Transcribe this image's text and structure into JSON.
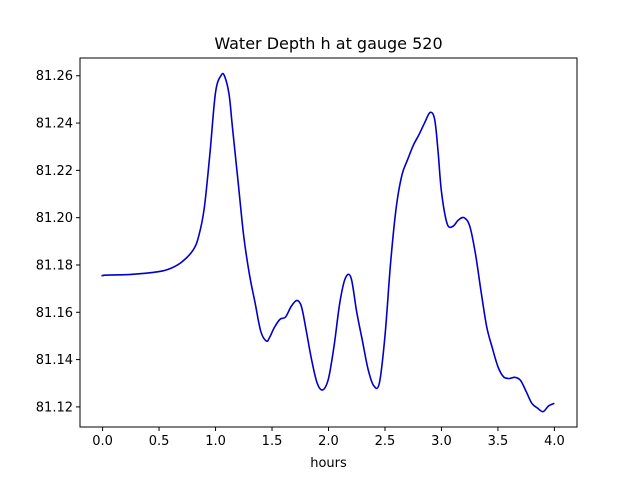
{
  "chart_data": {
    "type": "line",
    "title": "Water Depth h at gauge 520",
    "xlabel": "hours",
    "ylabel": "",
    "xlim": [
      -0.2,
      4.2
    ],
    "ylim": [
      81.1115,
      81.2675
    ],
    "grid": false,
    "x_ticks": [
      0.0,
      0.5,
      1.0,
      1.5,
      2.0,
      2.5,
      3.0,
      3.5,
      4.0
    ],
    "x_tick_labels": [
      "0.0",
      "0.5",
      "1.0",
      "1.5",
      "2.0",
      "2.5",
      "3.0",
      "3.5",
      "4.0"
    ],
    "y_ticks": [
      81.12,
      81.14,
      81.16,
      81.18,
      81.2,
      81.22,
      81.24,
      81.26
    ],
    "y_tick_labels": [
      "81.12",
      "81.14",
      "81.16",
      "81.18",
      "81.20",
      "81.22",
      "81.24",
      "81.26"
    ],
    "series": [
      {
        "color": "#0000cc",
        "x": [
          0.0,
          0.02,
          0.25,
          0.5,
          0.6,
          0.7,
          0.8,
          0.85,
          0.9,
          0.95,
          1.0,
          1.05,
          1.08,
          1.12,
          1.15,
          1.2,
          1.25,
          1.3,
          1.35,
          1.4,
          1.45,
          1.48,
          1.52,
          1.57,
          1.62,
          1.67,
          1.72,
          1.76,
          1.8,
          1.85,
          1.9,
          1.95,
          2.0,
          2.05,
          2.1,
          2.15,
          2.2,
          2.25,
          2.3,
          2.35,
          2.4,
          2.45,
          2.5,
          2.55,
          2.6,
          2.65,
          2.7,
          2.75,
          2.8,
          2.85,
          2.9,
          2.94,
          2.97,
          3.0,
          3.05,
          3.1,
          3.15,
          3.2,
          3.25,
          3.3,
          3.35,
          3.4,
          3.45,
          3.5,
          3.55,
          3.6,
          3.65,
          3.7,
          3.75,
          3.8,
          3.85,
          3.9,
          3.95,
          4.0
        ],
        "y": [
          81.1752,
          81.1757,
          81.176,
          81.1772,
          81.1785,
          81.1812,
          81.1862,
          81.192,
          81.204,
          81.227,
          81.253,
          81.2602,
          81.2598,
          81.252,
          81.238,
          81.215,
          81.192,
          81.176,
          81.164,
          81.152,
          81.1478,
          81.1495,
          81.1535,
          81.157,
          81.158,
          81.1625,
          81.165,
          81.1625,
          81.153,
          81.14,
          81.13,
          81.1272,
          81.132,
          81.146,
          81.164,
          81.1745,
          81.1745,
          81.16,
          81.148,
          81.136,
          81.129,
          81.13,
          81.15,
          81.181,
          81.2045,
          81.218,
          81.2245,
          81.2305,
          81.235,
          81.24,
          81.2445,
          81.2415,
          81.228,
          81.211,
          81.1975,
          81.1963,
          81.199,
          81.2,
          81.1965,
          81.185,
          81.169,
          81.154,
          81.145,
          81.137,
          81.1327,
          81.132,
          81.1325,
          81.1312,
          81.1265,
          81.1215,
          81.1195,
          81.118,
          81.1205,
          81.1215
        ]
      }
    ]
  }
}
